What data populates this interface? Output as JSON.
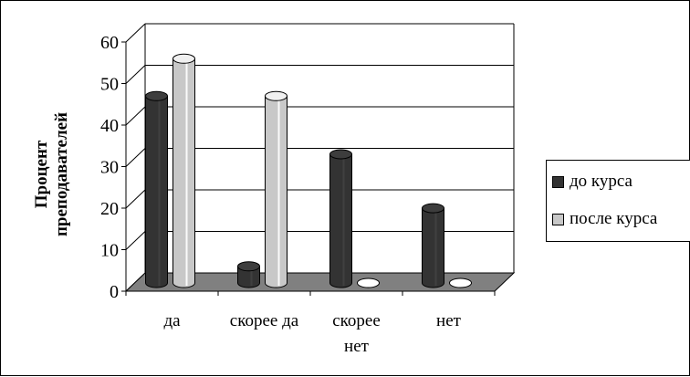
{
  "chart_data": {
    "type": "bar",
    "title": "",
    "xlabel": "",
    "ylabel": "Процент преподавателей",
    "categories": [
      "да",
      "скорее да",
      "скорее нет",
      "нет"
    ],
    "series": [
      {
        "name": "до курса",
        "values": [
          45,
          4,
          31,
          18
        ],
        "color": "#333333"
      },
      {
        "name": "после курса",
        "values": [
          54,
          45,
          0,
          0
        ],
        "color": "#c8c8c8"
      }
    ],
    "ylim": [
      0,
      60
    ],
    "yticks": [
      "0",
      "10",
      "20",
      "30",
      "40",
      "50",
      "60"
    ],
    "grid": true,
    "legend_position": "right",
    "floor_color": "#808080"
  },
  "ylabel_lines": [
    "Процент",
    "преподавателей"
  ],
  "category_lines": [
    [
      "да"
    ],
    [
      "скорее да"
    ],
    [
      "скорее",
      "нет"
    ],
    [
      "нет"
    ]
  ],
  "legend": {
    "item1": "до курса",
    "item2": "после курса"
  }
}
